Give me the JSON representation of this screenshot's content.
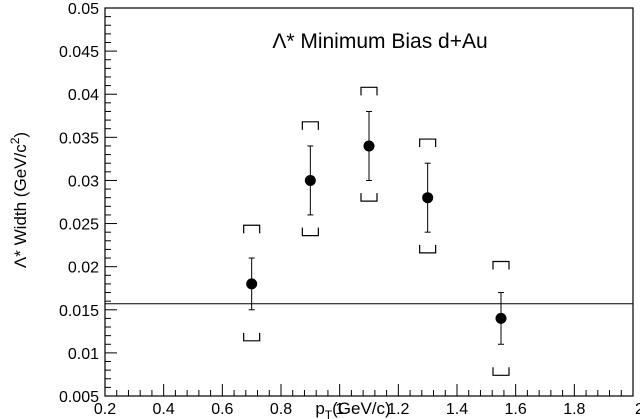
{
  "chart_data": {
    "type": "scatter",
    "title": "Λ* Minimum Bias d+Au",
    "xlabel": "p",
    "xlabel_sub": "T",
    "xlabel_tail": "(GeV/c)",
    "ylabel": "Λ* Width (GeV/c",
    "ylabel_sup": "2",
    "ylabel_tail": ")",
    "xlim": [
      0.2,
      2.0
    ],
    "ylim": [
      0.005,
      0.05
    ],
    "xticks": [
      0.2,
      0.4,
      0.6,
      0.8,
      1.0,
      1.2,
      1.4,
      1.6,
      1.8,
      2.0
    ],
    "xtick_labels": [
      "0.2",
      "0.4",
      "0.6",
      "0.8",
      "1",
      "1.2",
      "1.4",
      "1.6",
      "1.8",
      "2"
    ],
    "yticks": [
      0.005,
      0.01,
      0.015,
      0.02,
      0.025,
      0.03,
      0.035,
      0.04,
      0.045,
      0.05
    ],
    "ytick_labels": [
      "0.005",
      "0.01",
      "0.015",
      "0.02",
      "0.025",
      "0.03",
      "0.035",
      "0.04",
      "0.045",
      "0.05"
    ],
    "reference_line_y": 0.0157,
    "grid": false,
    "points": [
      {
        "x": 0.7,
        "y": 0.018,
        "stat_err": [
          0.015,
          0.021
        ],
        "sys_err": [
          0.0114,
          0.0248
        ]
      },
      {
        "x": 0.9,
        "y": 0.03,
        "stat_err": [
          0.026,
          0.034
        ],
        "sys_err": [
          0.0236,
          0.0368
        ]
      },
      {
        "x": 1.1,
        "y": 0.034,
        "stat_err": [
          0.03,
          0.038
        ],
        "sys_err": [
          0.0276,
          0.0408
        ]
      },
      {
        "x": 1.3,
        "y": 0.028,
        "stat_err": [
          0.024,
          0.032
        ],
        "sys_err": [
          0.0216,
          0.0348
        ]
      },
      {
        "x": 1.55,
        "y": 0.014,
        "stat_err": [
          0.011,
          0.017
        ],
        "sys_err": [
          0.0074,
          0.0206
        ]
      }
    ]
  }
}
